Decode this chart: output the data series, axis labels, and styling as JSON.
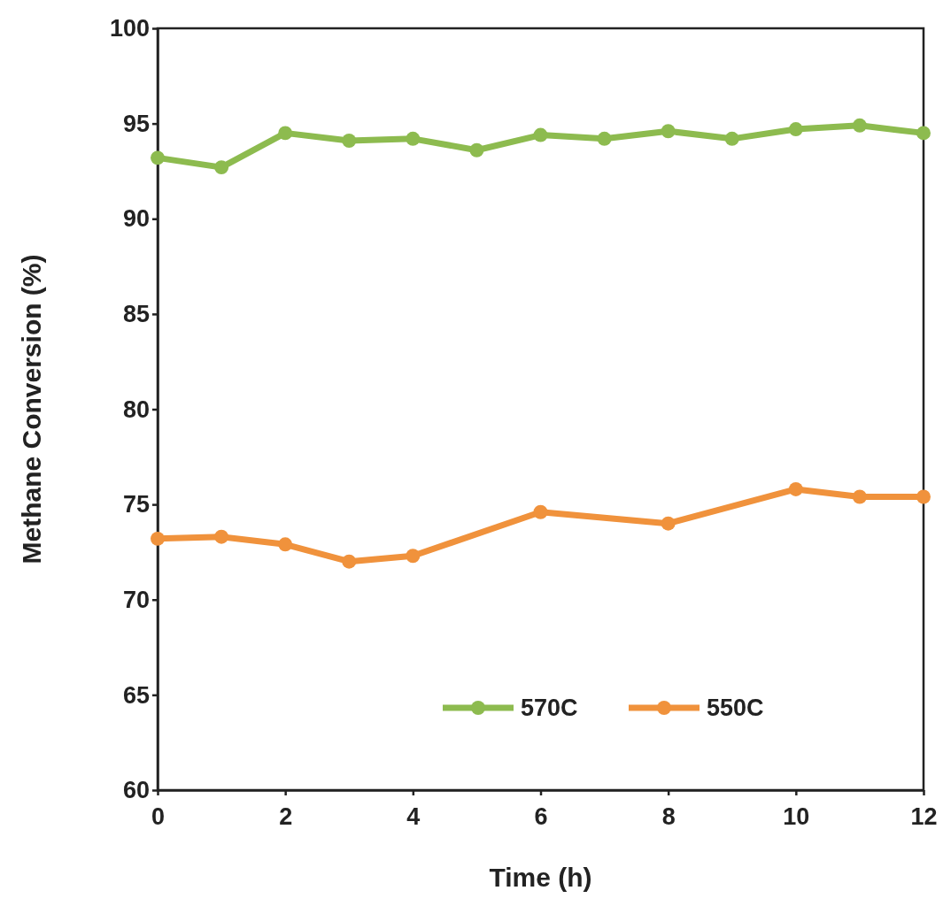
{
  "chart_data": {
    "type": "line",
    "xlabel": "Time (h)",
    "ylabel": "Methane Conversion (%)",
    "xlim": [
      0,
      12
    ],
    "xticks": [
      0,
      2,
      4,
      6,
      8,
      10,
      12
    ],
    "ylim": [
      60,
      100
    ],
    "yticks": [
      60,
      65,
      70,
      75,
      80,
      85,
      90,
      95,
      100
    ],
    "grid": false,
    "legend": "bottom right",
    "marker": "circle",
    "line_style": "solid",
    "series": [
      {
        "name": "570C",
        "color": "#8dbb4f",
        "x": [
          0,
          1,
          2,
          3,
          4,
          5,
          6,
          7,
          8,
          9,
          10,
          11,
          12
        ],
        "values": [
          93.2,
          92.7,
          94.5,
          94.1,
          94.2,
          93.6,
          94.4,
          94.2,
          94.6,
          94.2,
          94.7,
          94.9,
          94.5
        ]
      },
      {
        "name": "550C",
        "color": "#f0923c",
        "x": [
          0,
          1,
          2,
          3,
          4,
          6,
          8,
          10,
          11,
          12
        ],
        "values": [
          73.2,
          73.3,
          72.9,
          72.0,
          72.3,
          74.6,
          74.0,
          75.8,
          75.4,
          75.4
        ]
      }
    ]
  }
}
